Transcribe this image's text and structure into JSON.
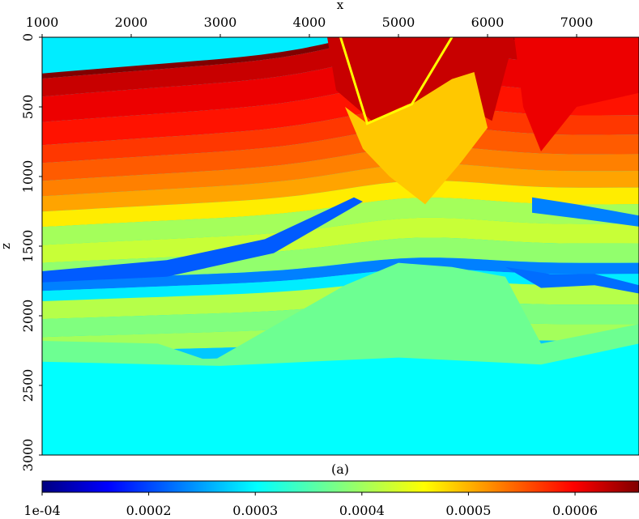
{
  "chart_data": {
    "type": "heatmap",
    "title": "",
    "xlabel": "x",
    "ylabel": "z",
    "caption": "(a)",
    "xlim": [
      1000,
      7700
    ],
    "ylim": [
      0,
      3000
    ],
    "y_inverted": true,
    "x_ticks": [
      "1000",
      "2000",
      "3000",
      "4000",
      "5000",
      "6000",
      "7000"
    ],
    "x_tick_values": [
      1000,
      2000,
      3000,
      4000,
      5000,
      6000,
      7000
    ],
    "y_ticks": [
      "0",
      "500",
      "1000",
      "1500",
      "2000",
      "2500",
      "3000"
    ],
    "y_tick_values": [
      0,
      500,
      1000,
      1500,
      2000,
      2500,
      3000
    ],
    "colorbar": {
      "range": [
        0.0001,
        0.00066
      ],
      "colormap": "jet",
      "tick_labels": [
        "1e-04",
        "0.0002",
        "0.0003",
        "0.0004",
        "0.0005",
        "0.0006"
      ],
      "tick_values": [
        0.0001,
        0.0002,
        0.0003,
        0.0004,
        0.0005,
        0.0006
      ]
    },
    "layers": [
      {
        "z_top": 0,
        "value": 0.00066
      },
      {
        "z_top": 40,
        "value": 0.00062
      },
      {
        "z_top": 180,
        "value": 0.0006
      },
      {
        "z_top": 380,
        "value": 0.00058
      },
      {
        "z_top": 560,
        "value": 0.00056
      },
      {
        "z_top": 700,
        "value": 0.00054
      },
      {
        "z_top": 840,
        "value": 0.00052
      },
      {
        "z_top": 960,
        "value": 0.0005
      },
      {
        "z_top": 1080,
        "value": 0.00046
      },
      {
        "z_top": 1200,
        "value": 0.0004
      },
      {
        "z_top": 1340,
        "value": 0.00042
      },
      {
        "z_top": 1480,
        "value": 0.00039
      },
      {
        "z_top": 1620,
        "value": 0.00024
      },
      {
        "z_top": 1700,
        "value": 0.0003
      },
      {
        "z_top": 1780,
        "value": 0.00041
      },
      {
        "z_top": 1920,
        "value": 0.00038
      },
      {
        "z_top": 2060,
        "value": 0.0004
      },
      {
        "z_top": 2180,
        "value": 0.00028
      },
      {
        "z_top": 2260,
        "value": 0.00037
      },
      {
        "z_top": 2320,
        "value": 0.0003
      }
    ],
    "regions": [
      {
        "name": "upper-fault-block",
        "value": 0.00062
      },
      {
        "name": "right-high-velocity",
        "value": 0.0006
      },
      {
        "name": "fault-wedge",
        "value": 0.00048
      },
      {
        "name": "blue-lens-1",
        "value": 0.00022
      },
      {
        "name": "blue-lens-2",
        "value": 0.00023
      },
      {
        "name": "blue-lens-3",
        "value": 0.00024
      },
      {
        "name": "salt-dome",
        "value": 0.00037
      },
      {
        "name": "basement",
        "value": 0.00031
      }
    ]
  }
}
